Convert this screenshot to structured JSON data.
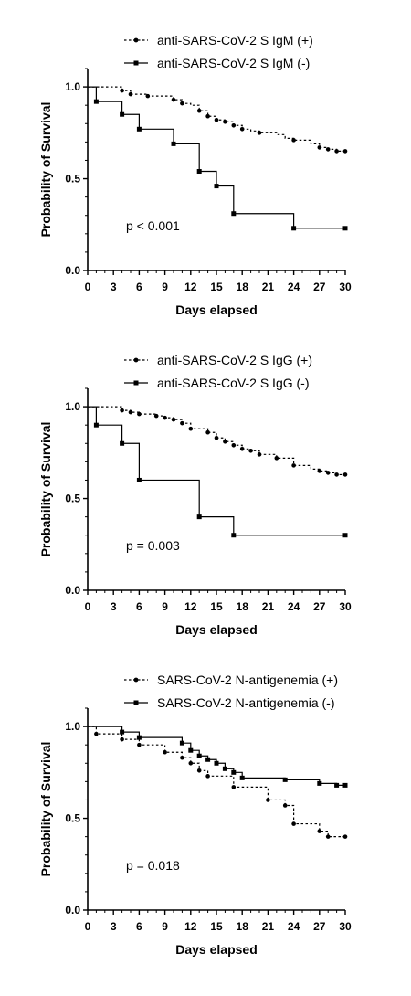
{
  "chart_data": [
    {
      "type": "line",
      "xlabel": "Days elapsed",
      "ylabel": "Probability of Survival",
      "xlim": [
        0,
        30
      ],
      "ylim": [
        0,
        1.1
      ],
      "x_ticks": [
        "0",
        "3",
        "6",
        "9",
        "12",
        "15",
        "18",
        "21",
        "24",
        "27",
        "30"
      ],
      "y_ticks": [
        "0.0",
        "0.5",
        "1.0"
      ],
      "annotation": "p < 0.001",
      "legend_position": "top",
      "series": [
        {
          "name": "anti-SARS-CoV-2 S IgM (+)",
          "style": "dashed",
          "steps": [
            [
              0,
              1.0
            ],
            [
              4,
              0.98
            ],
            [
              5,
              0.96
            ],
            [
              7,
              0.95
            ],
            [
              10,
              0.93
            ],
            [
              11,
              0.91
            ],
            [
              12,
              0.9
            ],
            [
              13,
              0.87
            ],
            [
              14,
              0.84
            ],
            [
              15,
              0.82
            ],
            [
              16,
              0.81
            ],
            [
              17,
              0.79
            ],
            [
              18,
              0.77
            ],
            [
              19,
              0.76
            ],
            [
              20,
              0.75
            ],
            [
              22,
              0.74
            ],
            [
              23,
              0.72
            ],
            [
              24,
              0.71
            ],
            [
              26,
              0.69
            ],
            [
              27,
              0.67
            ],
            [
              28,
              0.66
            ],
            [
              29,
              0.65
            ],
            [
              30,
              0.65
            ]
          ],
          "markers": [
            [
              4,
              0.98
            ],
            [
              5,
              0.96
            ],
            [
              7,
              0.95
            ],
            [
              10,
              0.93
            ],
            [
              11,
              0.91
            ],
            [
              13,
              0.87
            ],
            [
              14,
              0.84
            ],
            [
              15,
              0.82
            ],
            [
              16,
              0.81
            ],
            [
              17,
              0.79
            ],
            [
              18,
              0.77
            ],
            [
              20,
              0.75
            ],
            [
              24,
              0.71
            ],
            [
              27,
              0.67
            ],
            [
              28,
              0.66
            ],
            [
              29,
              0.65
            ],
            [
              30,
              0.65
            ]
          ]
        },
        {
          "name": "anti-SARS-CoV-2 S IgM (-)",
          "style": "solid",
          "steps": [
            [
              0,
              1.0
            ],
            [
              1,
              0.92
            ],
            [
              4,
              0.85
            ],
            [
              6,
              0.77
            ],
            [
              10,
              0.69
            ],
            [
              13,
              0.54
            ],
            [
              15,
              0.46
            ],
            [
              17,
              0.31
            ],
            [
              24,
              0.23
            ],
            [
              30,
              0.23
            ]
          ],
          "markers": [
            [
              1,
              0.92
            ],
            [
              4,
              0.85
            ],
            [
              6,
              0.77
            ],
            [
              10,
              0.69
            ],
            [
              13,
              0.54
            ],
            [
              15,
              0.46
            ],
            [
              17,
              0.31
            ],
            [
              24,
              0.23
            ],
            [
              30,
              0.23
            ]
          ]
        }
      ]
    },
    {
      "type": "line",
      "xlabel": "Days elapsed",
      "ylabel": "Probability of Survival",
      "xlim": [
        0,
        30
      ],
      "ylim": [
        0,
        1.1
      ],
      "x_ticks": [
        "0",
        "3",
        "6",
        "9",
        "12",
        "15",
        "18",
        "21",
        "24",
        "27",
        "30"
      ],
      "y_ticks": [
        "0.0",
        "0.5",
        "1.0"
      ],
      "annotation": "p = 0.003",
      "legend_position": "top",
      "series": [
        {
          "name": "anti-SARS-CoV-2 S IgG (+)",
          "style": "dashed",
          "steps": [
            [
              0,
              1.0
            ],
            [
              4,
              0.98
            ],
            [
              5,
              0.97
            ],
            [
              6,
              0.96
            ],
            [
              8,
              0.95
            ],
            [
              9,
              0.94
            ],
            [
              10,
              0.93
            ],
            [
              11,
              0.91
            ],
            [
              12,
              0.88
            ],
            [
              14,
              0.86
            ],
            [
              15,
              0.83
            ],
            [
              16,
              0.81
            ],
            [
              17,
              0.79
            ],
            [
              18,
              0.77
            ],
            [
              19,
              0.76
            ],
            [
              20,
              0.74
            ],
            [
              22,
              0.72
            ],
            [
              24,
              0.68
            ],
            [
              26,
              0.66
            ],
            [
              27,
              0.65
            ],
            [
              28,
              0.64
            ],
            [
              29,
              0.63
            ],
            [
              30,
              0.63
            ]
          ],
          "markers": [
            [
              4,
              0.98
            ],
            [
              5,
              0.97
            ],
            [
              6,
              0.96
            ],
            [
              8,
              0.95
            ],
            [
              9,
              0.94
            ],
            [
              10,
              0.93
            ],
            [
              11,
              0.91
            ],
            [
              12,
              0.88
            ],
            [
              14,
              0.86
            ],
            [
              15,
              0.83
            ],
            [
              16,
              0.81
            ],
            [
              17,
              0.79
            ],
            [
              18,
              0.77
            ],
            [
              19,
              0.76
            ],
            [
              20,
              0.74
            ],
            [
              22,
              0.72
            ],
            [
              24,
              0.68
            ],
            [
              27,
              0.65
            ],
            [
              28,
              0.64
            ],
            [
              29,
              0.63
            ],
            [
              30,
              0.63
            ]
          ]
        },
        {
          "name": "anti-SARS-CoV-2 S IgG (-)",
          "style": "solid",
          "steps": [
            [
              0,
              1.0
            ],
            [
              1,
              0.9
            ],
            [
              4,
              0.8
            ],
            [
              6,
              0.6
            ],
            [
              13,
              0.4
            ],
            [
              17,
              0.3
            ],
            [
              30,
              0.3
            ]
          ],
          "markers": [
            [
              1,
              0.9
            ],
            [
              4,
              0.8
            ],
            [
              6,
              0.6
            ],
            [
              13,
              0.4
            ],
            [
              17,
              0.3
            ],
            [
              30,
              0.3
            ]
          ]
        }
      ]
    },
    {
      "type": "line",
      "xlabel": "Days elapsed",
      "ylabel": "Probability of Survival",
      "xlim": [
        0,
        30
      ],
      "ylim": [
        0,
        1.1
      ],
      "x_ticks": [
        "0",
        "3",
        "6",
        "9",
        "12",
        "15",
        "18",
        "21",
        "24",
        "27",
        "30"
      ],
      "y_ticks": [
        "0.0",
        "0.5",
        "1.0"
      ],
      "annotation": "p = 0.018",
      "legend_position": "top",
      "series": [
        {
          "name": "SARS-CoV-2 N-antigenemia (+)",
          "style": "dashed",
          "steps": [
            [
              0,
              1.0
            ],
            [
              1,
              0.96
            ],
            [
              4,
              0.93
            ],
            [
              6,
              0.9
            ],
            [
              9,
              0.86
            ],
            [
              11,
              0.83
            ],
            [
              12,
              0.8
            ],
            [
              13,
              0.76
            ],
            [
              14,
              0.73
            ],
            [
              17,
              0.67
            ],
            [
              21,
              0.6
            ],
            [
              23,
              0.57
            ],
            [
              24,
              0.47
            ],
            [
              27,
              0.43
            ],
            [
              28,
              0.4
            ],
            [
              30,
              0.4
            ]
          ],
          "markers": [
            [
              1,
              0.96
            ],
            [
              4,
              0.93
            ],
            [
              6,
              0.9
            ],
            [
              9,
              0.86
            ],
            [
              11,
              0.83
            ],
            [
              12,
              0.8
            ],
            [
              13,
              0.76
            ],
            [
              14,
              0.73
            ],
            [
              17,
              0.67
            ],
            [
              21,
              0.6
            ],
            [
              23,
              0.57
            ],
            [
              24,
              0.47
            ],
            [
              27,
              0.43
            ],
            [
              28,
              0.4
            ],
            [
              30,
              0.4
            ]
          ]
        },
        {
          "name": "SARS-CoV-2 N-antigenemia (-)",
          "style": "solid",
          "steps": [
            [
              0,
              1.0
            ],
            [
              4,
              0.97
            ],
            [
              6,
              0.94
            ],
            [
              11,
              0.91
            ],
            [
              12,
              0.87
            ],
            [
              13,
              0.84
            ],
            [
              14,
              0.82
            ],
            [
              15,
              0.8
            ],
            [
              16,
              0.77
            ],
            [
              17,
              0.75
            ],
            [
              18,
              0.72
            ],
            [
              23,
              0.71
            ],
            [
              27,
              0.69
            ],
            [
              29,
              0.68
            ],
            [
              30,
              0.68
            ]
          ],
          "markers": [
            [
              4,
              0.97
            ],
            [
              6,
              0.94
            ],
            [
              11,
              0.91
            ],
            [
              12,
              0.87
            ],
            [
              13,
              0.84
            ],
            [
              14,
              0.82
            ],
            [
              15,
              0.8
            ],
            [
              16,
              0.77
            ],
            [
              17,
              0.75
            ],
            [
              18,
              0.72
            ],
            [
              23,
              0.71
            ],
            [
              27,
              0.69
            ],
            [
              29,
              0.68
            ],
            [
              30,
              0.68
            ]
          ]
        }
      ]
    }
  ]
}
